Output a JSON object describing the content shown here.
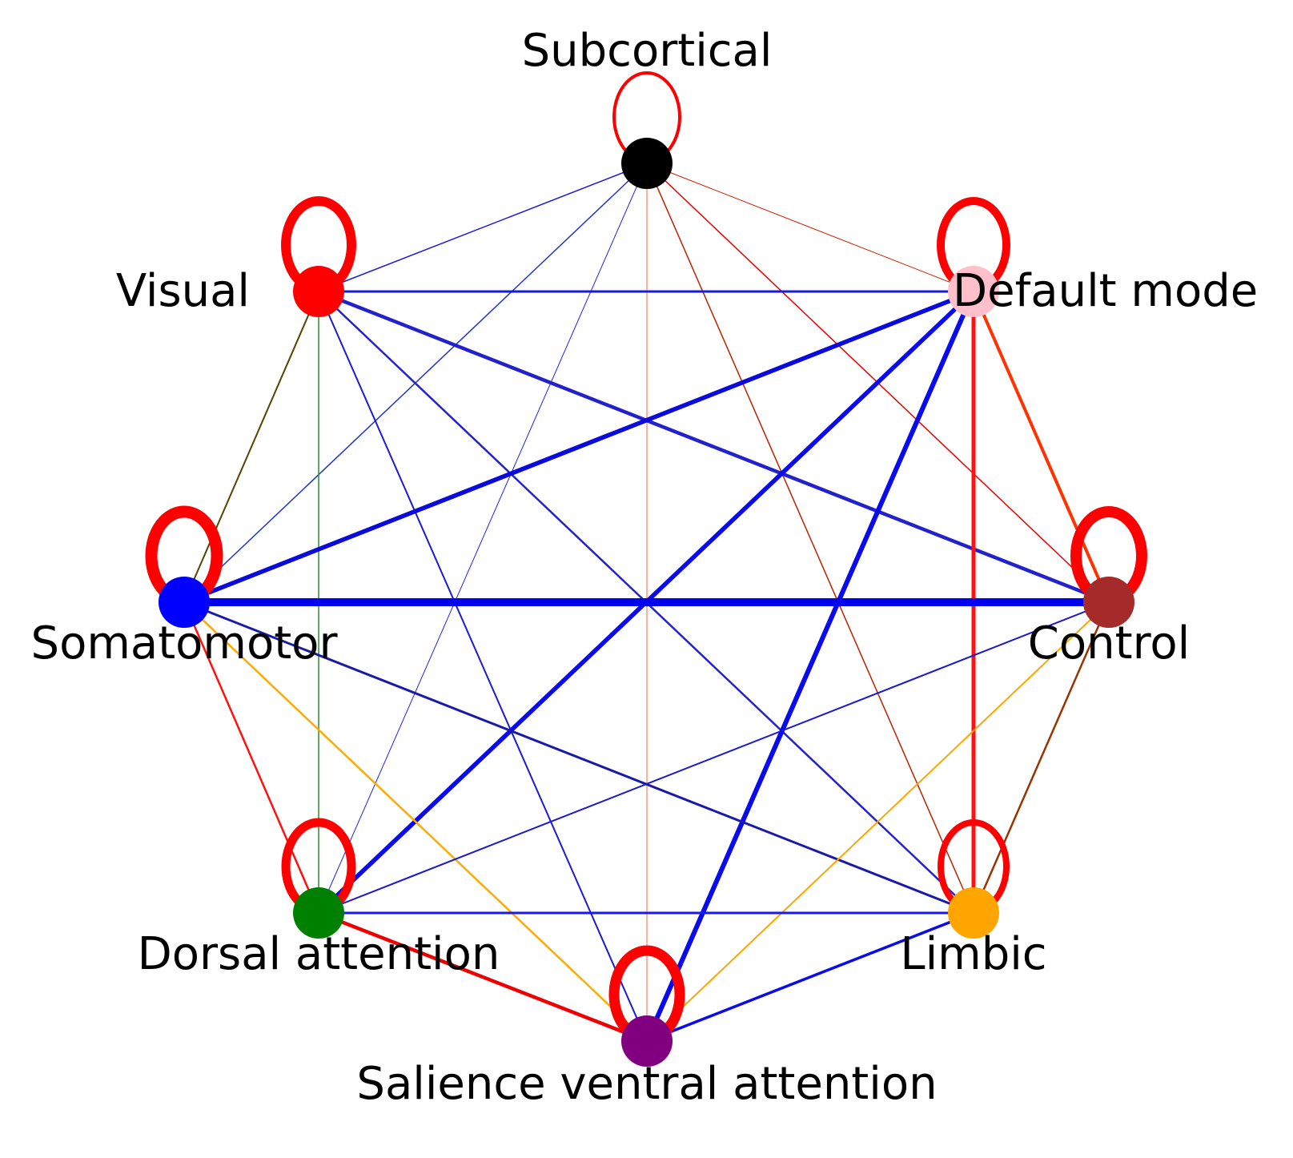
{
  "nodes": [
    {
      "id": "subcortical",
      "label": "Subcortical",
      "color": "#000000"
    },
    {
      "id": "visual",
      "label": "Visual",
      "color": "#ff0000"
    },
    {
      "id": "default-mode",
      "label": "Default mode",
      "color": "#ffc0cb"
    },
    {
      "id": "somatomotor",
      "label": "Somatomotor",
      "color": "#0000ff"
    },
    {
      "id": "control",
      "label": "Control",
      "color": "#a52a2a"
    },
    {
      "id": "dorsal-attention",
      "label": "Dorsal attention",
      "color": "#008000"
    },
    {
      "id": "limbic",
      "label": "Limbic",
      "color": "#ffa500"
    },
    {
      "id": "salience-ventral-attention",
      "label": "Salience ventral attention",
      "color": "#800080"
    }
  ],
  "self_loops": [
    {
      "node": "subcortical",
      "color": "#ff0000",
      "weight": 4
    },
    {
      "node": "visual",
      "color": "#ff0000",
      "weight": 12
    },
    {
      "node": "default-mode",
      "color": "#ff0000",
      "weight": 10
    },
    {
      "node": "somatomotor",
      "color": "#ff0000",
      "weight": 15
    },
    {
      "node": "control",
      "color": "#ff0000",
      "weight": 14
    },
    {
      "node": "dorsal-attention",
      "color": "#ff0000",
      "weight": 11
    },
    {
      "node": "limbic",
      "color": "#ff0000",
      "weight": 8
    },
    {
      "node": "salience-ventral-attention",
      "color": "#ff0000",
      "weight": 13
    }
  ],
  "edges": [
    {
      "from": "subcortical",
      "to": "visual",
      "color": "#1a1ad9",
      "weight": 1.5
    },
    {
      "from": "subcortical",
      "to": "default-mode",
      "color": "#cc2200",
      "weight": 1
    },
    {
      "from": "subcortical",
      "to": "somatomotor",
      "color": "#2233cc",
      "weight": 1.5
    },
    {
      "from": "subcortical",
      "to": "control",
      "color": "#ee0000",
      "weight": 1.5
    },
    {
      "from": "subcortical",
      "to": "dorsal-attention",
      "color": "#2222dd",
      "weight": 1
    },
    {
      "from": "subcortical",
      "to": "limbic",
      "color": "#bb2200",
      "weight": 1.5
    },
    {
      "from": "subcortical",
      "to": "salience-ventral-attention",
      "color": "#ff6633",
      "weight": 1
    },
    {
      "from": "visual",
      "to": "default-mode",
      "color": "#1a1add",
      "weight": 3
    },
    {
      "from": "visual",
      "to": "somatomotor",
      "color": "#554400",
      "weight": 2
    },
    {
      "from": "visual",
      "to": "control",
      "color": "#2222cc",
      "weight": 4.5
    },
    {
      "from": "visual",
      "to": "dorsal-attention",
      "color": "#338833",
      "weight": 1.5
    },
    {
      "from": "visual",
      "to": "limbic",
      "color": "#2222cc",
      "weight": 2.5
    },
    {
      "from": "visual",
      "to": "salience-ventral-attention",
      "color": "#1a1ad9",
      "weight": 2
    },
    {
      "from": "default-mode",
      "to": "somatomotor",
      "color": "#0a0add",
      "weight": 5.5
    },
    {
      "from": "default-mode",
      "to": "control",
      "color": "#ff3300",
      "weight": 4
    },
    {
      "from": "default-mode",
      "to": "dorsal-attention",
      "color": "#0a0aee",
      "weight": 5.5
    },
    {
      "from": "default-mode",
      "to": "limbic",
      "color": "#ff1111",
      "weight": 5
    },
    {
      "from": "default-mode",
      "to": "salience-ventral-attention",
      "color": "#0a0aee",
      "weight": 6
    },
    {
      "from": "somatomotor",
      "to": "control",
      "color": "#0000ee",
      "weight": 10
    },
    {
      "from": "somatomotor",
      "to": "dorsal-attention",
      "color": "#ff1111",
      "weight": 2.5
    },
    {
      "from": "somatomotor",
      "to": "limbic",
      "color": "#1a1aaa",
      "weight": 3
    },
    {
      "from": "somatomotor",
      "to": "salience-ventral-attention",
      "color": "#ffaa00",
      "weight": 2.5
    },
    {
      "from": "control",
      "to": "dorsal-attention",
      "color": "#1a1acc",
      "weight": 2
    },
    {
      "from": "control",
      "to": "limbic",
      "color": "#993300",
      "weight": 2.5
    },
    {
      "from": "control",
      "to": "salience-ventral-attention",
      "color": "#ffa500",
      "weight": 2
    },
    {
      "from": "dorsal-attention",
      "to": "limbic",
      "color": "#1a1aee",
      "weight": 3
    },
    {
      "from": "dorsal-attention",
      "to": "salience-ventral-attention",
      "color": "#ee0000",
      "weight": 4.5
    },
    {
      "from": "limbic",
      "to": "salience-ventral-attention",
      "color": "#0a0aee",
      "weight": 3.5
    }
  ]
}
